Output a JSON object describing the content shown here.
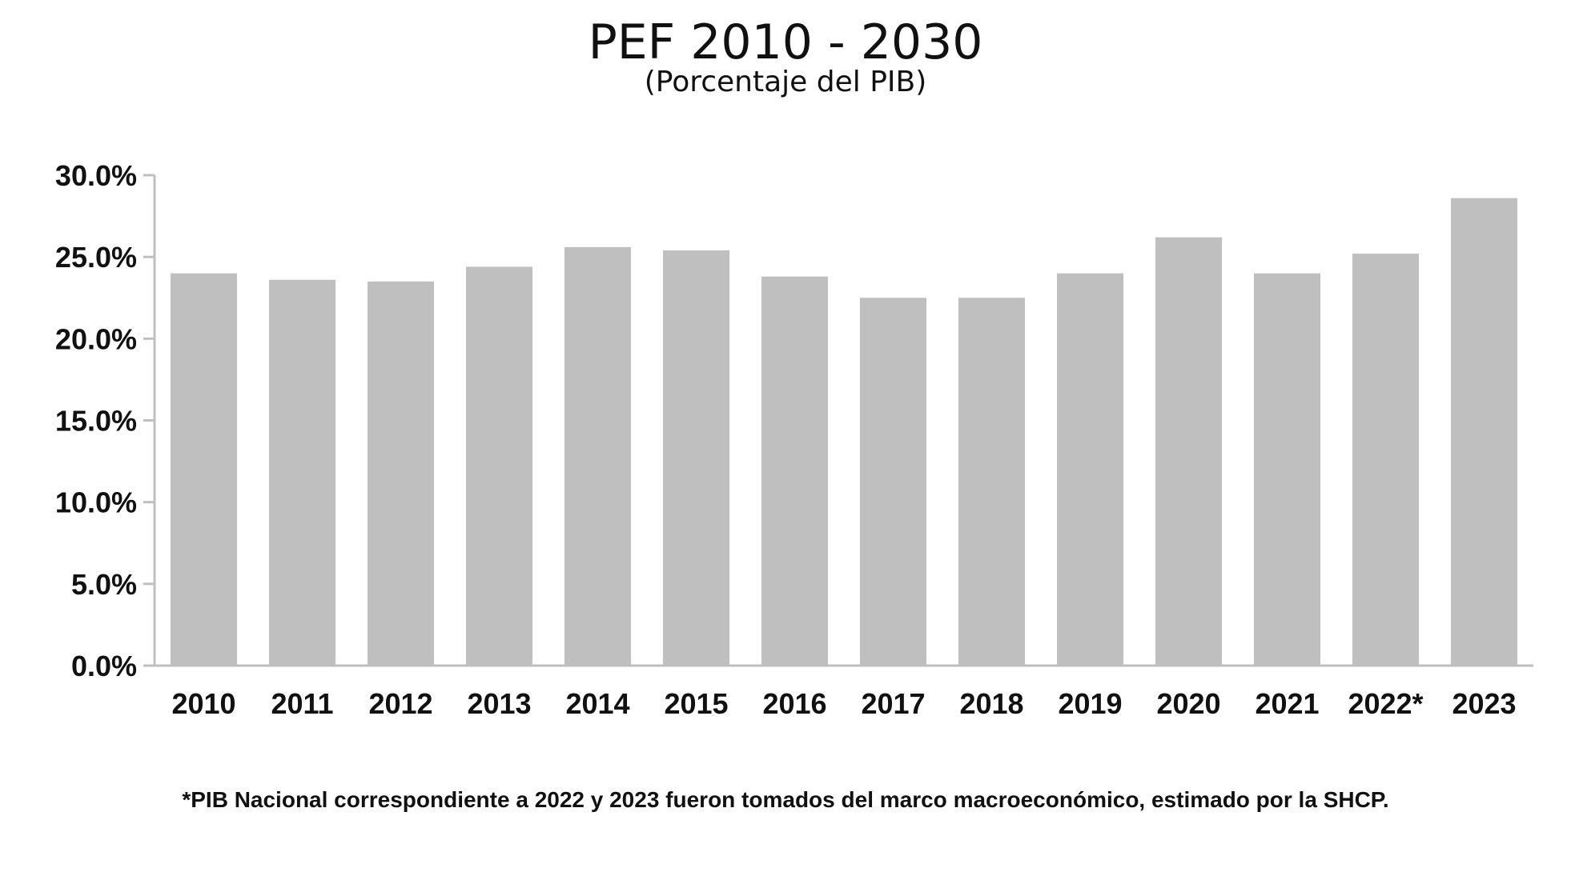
{
  "chart_data": {
    "type": "bar",
    "title": "PEF 2010 - 2030",
    "subtitle": "(Porcentaje del PIB)",
    "categories": [
      "2010",
      "2011",
      "2012",
      "2013",
      "2014",
      "2015",
      "2016",
      "2017",
      "2018",
      "2019",
      "2020",
      "2021",
      "2022*",
      "2023"
    ],
    "values": [
      24.0,
      23.6,
      23.5,
      24.4,
      25.6,
      25.4,
      23.8,
      22.5,
      22.5,
      24.0,
      26.2,
      24.0,
      25.2,
      28.6
    ],
    "ylim": [
      0,
      30
    ],
    "yticks": [
      "0.0%",
      "5.0%",
      "10.0%",
      "15.0%",
      "20.0%",
      "25.0%",
      "30.0%"
    ],
    "ytick_values": [
      0,
      5,
      10,
      15,
      20,
      25,
      30
    ],
    "grid": false,
    "bar_color": "#bfbfbf",
    "axis_color": "#bfbfbf",
    "text_color": "#111111",
    "footnote": "*PIB Nacional correspondiente a 2022 y 2023 fueron tomados del marco macroeconómico, estimado por la SHCP."
  }
}
